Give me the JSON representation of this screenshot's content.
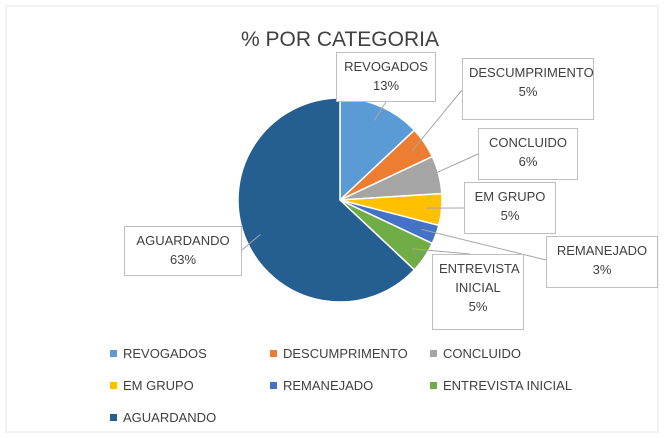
{
  "chart_data": {
    "type": "pie",
    "title": "% POR CATEGORIA",
    "categories": [
      "REVOGADOS",
      "DESCUMPRIMENTO",
      "CONCLUIDO",
      "EM GRUPO",
      "REMANEJADO",
      "ENTREVISTA INICIAL",
      "AGUARDANDO"
    ],
    "values": [
      13,
      5,
      6,
      5,
      3,
      5,
      63
    ],
    "value_labels": [
      "13%",
      "5%",
      "6%",
      "5%",
      "3%",
      "5%",
      "63%"
    ],
    "colors": [
      "#5b9bd5",
      "#ed7d31",
      "#a5a5a5",
      "#ffc000",
      "#4472c4",
      "#70ad47",
      "#255e91"
    ],
    "legend": "bottom"
  }
}
